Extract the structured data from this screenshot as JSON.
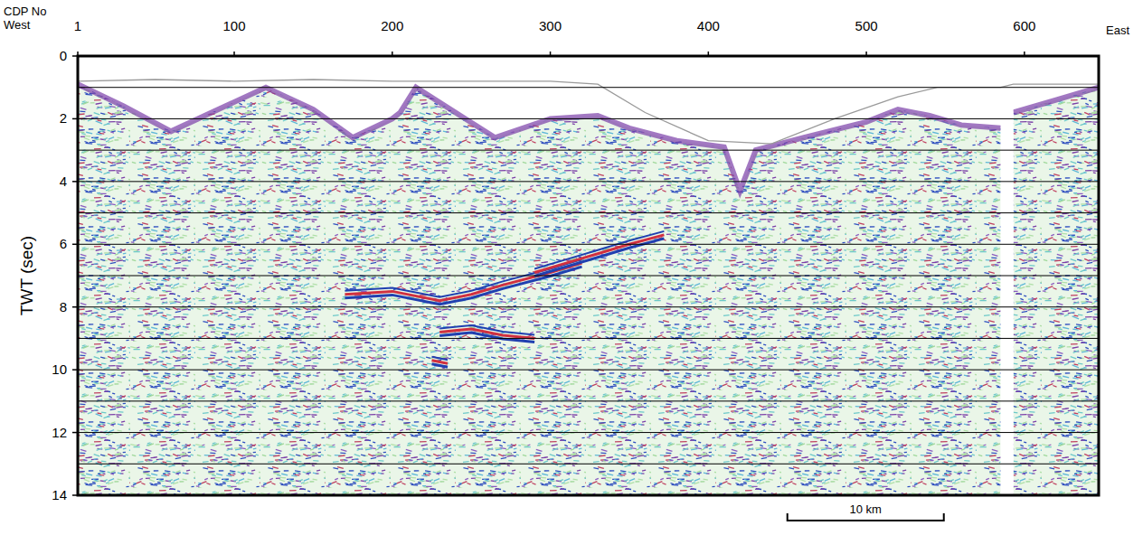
{
  "chart_data": {
    "type": "seismic_section",
    "x_label": "CDP No",
    "y_label": "TWT (sec)",
    "x_left_label": "West",
    "x_right_label": "East",
    "xlim": [
      1,
      647
    ],
    "ylim": [
      0,
      14
    ],
    "xticks": [
      1,
      100,
      200,
      300,
      400,
      500,
      600
    ],
    "yticks": [
      0,
      2,
      4,
      6,
      8,
      10,
      12,
      14
    ],
    "reference_lines": [
      1,
      2,
      3,
      4,
      5,
      6,
      7,
      8,
      9,
      10,
      11,
      12,
      13
    ],
    "grid": true,
    "data_gap": [
      585,
      593
    ],
    "scale_bar": {
      "label": "10 km",
      "from": 450,
      "to": 549
    },
    "topography": {
      "color": "#9a9a9a",
      "x": [
        1,
        50,
        100,
        150,
        200,
        250,
        300,
        330,
        360,
        400,
        440,
        480,
        520,
        545,
        585,
        593,
        647
      ],
      "values": [
        0.8,
        0.75,
        0.8,
        0.75,
        0.8,
        0.8,
        0.8,
        0.9,
        1.8,
        2.7,
        2.8,
        2.0,
        1.3,
        1.0,
        1.0,
        0.9,
        0.9
      ]
    },
    "data_top": {
      "color": "#7b3fa8",
      "x": [
        1,
        30,
        60,
        90,
        120,
        150,
        175,
        200,
        205,
        215,
        240,
        265,
        300,
        330,
        350,
        380,
        410,
        420,
        430,
        460,
        500,
        520,
        540,
        560,
        585,
        null,
        593,
        620,
        647
      ],
      "values": [
        0.9,
        1.6,
        2.4,
        1.7,
        1.0,
        1.7,
        2.6,
        2.0,
        1.8,
        1.0,
        1.8,
        2.6,
        2.0,
        1.9,
        2.3,
        2.7,
        2.9,
        4.3,
        3.0,
        2.6,
        2.1,
        1.7,
        1.9,
        2.2,
        2.3,
        null,
        1.8,
        1.4,
        1.0
      ]
    },
    "reflectors": [
      {
        "color": "#d03040",
        "x": [
          170,
          200,
          230,
          250,
          270,
          300,
          320
        ],
        "values": [
          7.6,
          7.5,
          7.8,
          7.6,
          7.3,
          6.9,
          6.6
        ]
      },
      {
        "color": "#d03040",
        "x": [
          290,
          310,
          330,
          350,
          372
        ],
        "values": [
          6.9,
          6.6,
          6.3,
          6.0,
          5.7
        ]
      },
      {
        "color": "#d03040",
        "x": [
          230,
          250,
          270,
          290
        ],
        "values": [
          8.8,
          8.7,
          8.9,
          9.0
        ]
      },
      {
        "color": "#d03040",
        "x": [
          225,
          235
        ],
        "values": [
          9.7,
          9.8
        ]
      }
    ]
  }
}
